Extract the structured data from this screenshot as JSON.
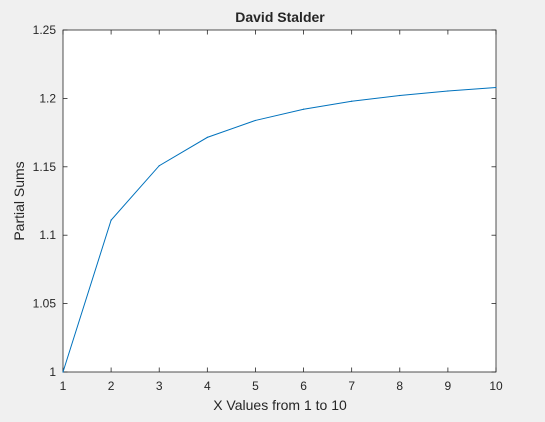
{
  "chart_data": {
    "type": "line",
    "title": "David Stalder",
    "xlabel": "X Values from 1 to 10",
    "ylabel": "Partial Sums",
    "xlim": [
      1,
      10
    ],
    "ylim": [
      1,
      1.25
    ],
    "x_ticks": [
      "1",
      "2",
      "3",
      "4",
      "5",
      "6",
      "7",
      "8",
      "9",
      "10"
    ],
    "y_ticks": [
      "1",
      "1.05",
      "1.1",
      "1.15",
      "1.2",
      "1.25"
    ],
    "grid": false,
    "series": [
      {
        "x": [
          1,
          2,
          3,
          4,
          5,
          6,
          7,
          8,
          9,
          10
        ],
        "y": [
          1.0,
          1.111,
          1.1508,
          1.1715,
          1.1839,
          1.1921,
          1.1979,
          1.2021,
          1.2054,
          1.208
        ]
      }
    ],
    "colors": {
      "line": "#0072bd",
      "axes_bg": "#ffffff",
      "figure_bg": "#f0f0f0",
      "axis": "#262626"
    }
  }
}
